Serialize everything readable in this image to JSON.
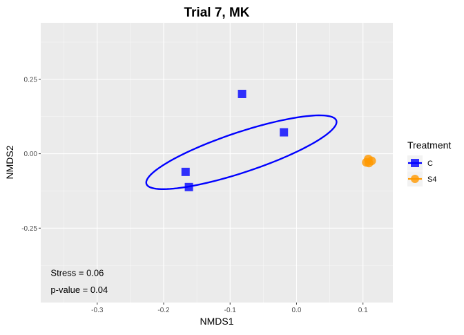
{
  "chart_data": {
    "type": "scatter",
    "title": "Trial 7, MK",
    "xlabel": "NMDS1",
    "ylabel": "NMDS2",
    "xlim": [
      -0.385,
      0.145
    ],
    "ylim": [
      -0.5,
      0.44
    ],
    "x_ticks": [
      -0.3,
      -0.2,
      -0.1,
      0.0,
      0.1
    ],
    "x_tick_labels": [
      "-0.3",
      "-0.2",
      "-0.1",
      "0.0",
      "0.1"
    ],
    "y_ticks": [
      0.25,
      0.0,
      -0.25
    ],
    "y_tick_labels": [
      "0.25",
      "0.00",
      "-0.25"
    ],
    "grid": true,
    "legend": {
      "title": "Treatment",
      "position": "right"
    },
    "series": [
      {
        "name": "C",
        "color": "#0000FF",
        "marker": "square",
        "points": [
          {
            "x": -0.082,
            "y": 0.201
          },
          {
            "x": -0.019,
            "y": 0.072
          },
          {
            "x": -0.167,
            "y": -0.061
          },
          {
            "x": -0.162,
            "y": -0.112
          }
        ],
        "ellipse": {
          "center": [
            -0.083,
            0.005
          ],
          "semi_axes": [
            0.181,
            0.056
          ],
          "angle_deg": 40
        }
      },
      {
        "name": "S4",
        "color": "#FF9900",
        "marker": "circle",
        "points": [
          {
            "x": 0.108,
            "y": -0.018
          },
          {
            "x": 0.113,
            "y": -0.024
          },
          {
            "x": 0.105,
            "y": -0.029
          },
          {
            "x": 0.109,
            "y": -0.031
          }
        ]
      }
    ],
    "annotations": [
      {
        "text": "Stress =  0.06",
        "x": -0.37,
        "y": -0.4
      },
      {
        "text": "p-value =  0.04",
        "x": -0.37,
        "y": -0.457
      }
    ]
  }
}
